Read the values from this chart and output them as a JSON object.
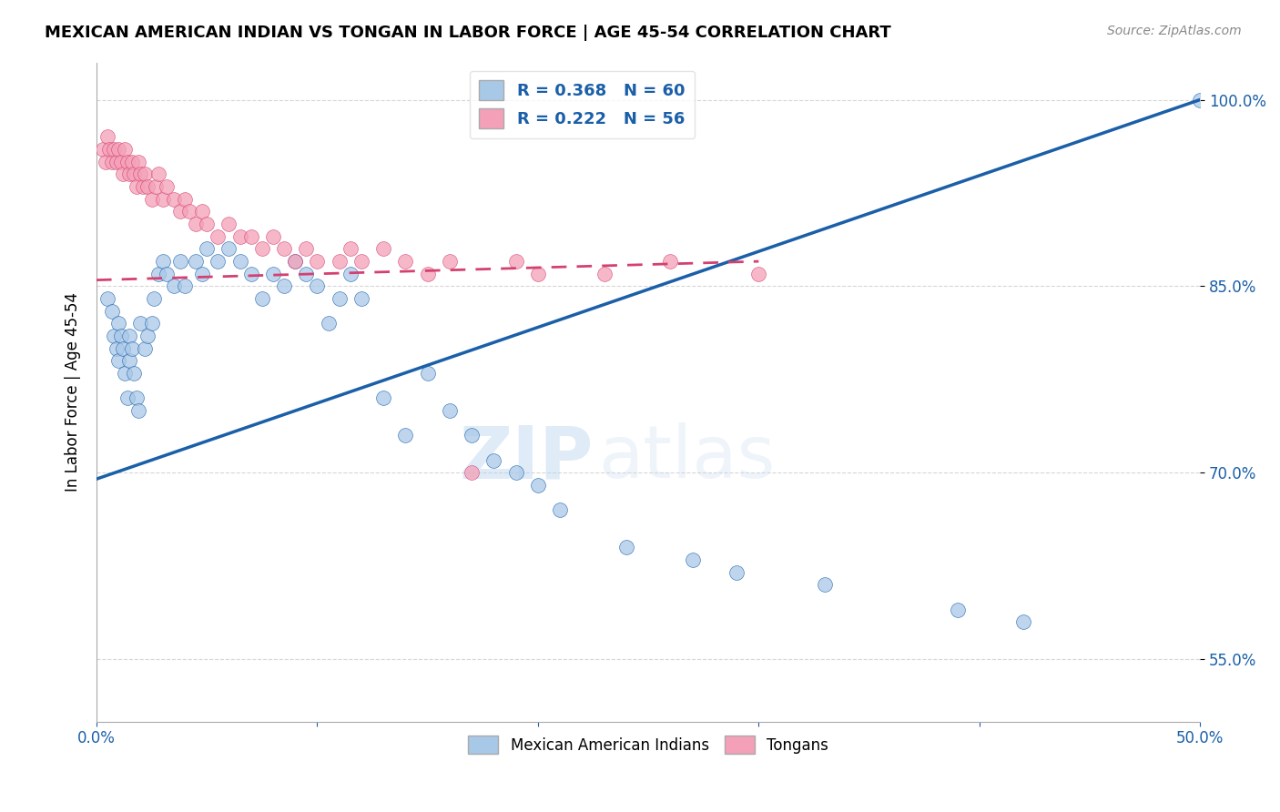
{
  "title": "MEXICAN AMERICAN INDIAN VS TONGAN IN LABOR FORCE | AGE 45-54 CORRELATION CHART",
  "source": "Source: ZipAtlas.com",
  "ylabel": "In Labor Force | Age 45-54",
  "legend_label_blue": "Mexican American Indians",
  "legend_label_pink": "Tongans",
  "r_blue": 0.368,
  "n_blue": 60,
  "r_pink": 0.222,
  "n_pink": 56,
  "xmin": 0.0,
  "xmax": 0.5,
  "ymin": 0.5,
  "ymax": 1.03,
  "yticks": [
    0.55,
    0.7,
    0.85,
    1.0
  ],
  "ytick_labels": [
    "55.0%",
    "70.0%",
    "85.0%",
    "100.0%"
  ],
  "xticks": [
    0.0,
    0.1,
    0.2,
    0.3,
    0.4,
    0.5
  ],
  "xtick_labels": [
    "0.0%",
    "",
    "",
    "",
    "",
    "50.0%"
  ],
  "color_blue": "#a8c8e8",
  "color_pink": "#f4a0b8",
  "line_color_blue": "#1a5fa8",
  "line_color_pink": "#d44070",
  "watermark_zip": "ZIP",
  "watermark_atlas": "atlas",
  "blue_line_x": [
    0.0,
    0.5
  ],
  "blue_line_y": [
    0.695,
    1.0
  ],
  "pink_line_x": [
    0.0,
    0.3
  ],
  "pink_line_y": [
    0.855,
    0.87
  ],
  "blue_scatter_x": [
    0.005,
    0.007,
    0.008,
    0.009,
    0.01,
    0.01,
    0.011,
    0.012,
    0.013,
    0.014,
    0.015,
    0.015,
    0.016,
    0.017,
    0.018,
    0.019,
    0.02,
    0.022,
    0.023,
    0.025,
    0.026,
    0.028,
    0.03,
    0.032,
    0.035,
    0.038,
    0.04,
    0.045,
    0.048,
    0.05,
    0.055,
    0.06,
    0.065,
    0.07,
    0.075,
    0.08,
    0.085,
    0.09,
    0.095,
    0.1,
    0.105,
    0.11,
    0.115,
    0.12,
    0.13,
    0.14,
    0.15,
    0.16,
    0.17,
    0.18,
    0.19,
    0.2,
    0.21,
    0.24,
    0.27,
    0.29,
    0.33,
    0.39,
    0.42,
    0.5
  ],
  "blue_scatter_y": [
    0.84,
    0.83,
    0.81,
    0.8,
    0.82,
    0.79,
    0.81,
    0.8,
    0.78,
    0.76,
    0.81,
    0.79,
    0.8,
    0.78,
    0.76,
    0.75,
    0.82,
    0.8,
    0.81,
    0.82,
    0.84,
    0.86,
    0.87,
    0.86,
    0.85,
    0.87,
    0.85,
    0.87,
    0.86,
    0.88,
    0.87,
    0.88,
    0.87,
    0.86,
    0.84,
    0.86,
    0.85,
    0.87,
    0.86,
    0.85,
    0.82,
    0.84,
    0.86,
    0.84,
    0.76,
    0.73,
    0.78,
    0.75,
    0.73,
    0.71,
    0.7,
    0.69,
    0.67,
    0.64,
    0.63,
    0.62,
    0.61,
    0.59,
    0.58,
    1.0
  ],
  "pink_scatter_x": [
    0.003,
    0.004,
    0.005,
    0.006,
    0.007,
    0.008,
    0.009,
    0.01,
    0.011,
    0.012,
    0.013,
    0.014,
    0.015,
    0.016,
    0.017,
    0.018,
    0.019,
    0.02,
    0.021,
    0.022,
    0.023,
    0.025,
    0.027,
    0.028,
    0.03,
    0.032,
    0.035,
    0.038,
    0.04,
    0.042,
    0.045,
    0.048,
    0.05,
    0.055,
    0.06,
    0.065,
    0.07,
    0.075,
    0.08,
    0.085,
    0.09,
    0.095,
    0.1,
    0.11,
    0.115,
    0.12,
    0.13,
    0.14,
    0.15,
    0.16,
    0.17,
    0.19,
    0.2,
    0.23,
    0.26,
    0.3
  ],
  "pink_scatter_y": [
    0.96,
    0.95,
    0.97,
    0.96,
    0.95,
    0.96,
    0.95,
    0.96,
    0.95,
    0.94,
    0.96,
    0.95,
    0.94,
    0.95,
    0.94,
    0.93,
    0.95,
    0.94,
    0.93,
    0.94,
    0.93,
    0.92,
    0.93,
    0.94,
    0.92,
    0.93,
    0.92,
    0.91,
    0.92,
    0.91,
    0.9,
    0.91,
    0.9,
    0.89,
    0.9,
    0.89,
    0.89,
    0.88,
    0.89,
    0.88,
    0.87,
    0.88,
    0.87,
    0.87,
    0.88,
    0.87,
    0.88,
    0.87,
    0.86,
    0.87,
    0.7,
    0.87,
    0.86,
    0.86,
    0.87,
    0.86
  ]
}
